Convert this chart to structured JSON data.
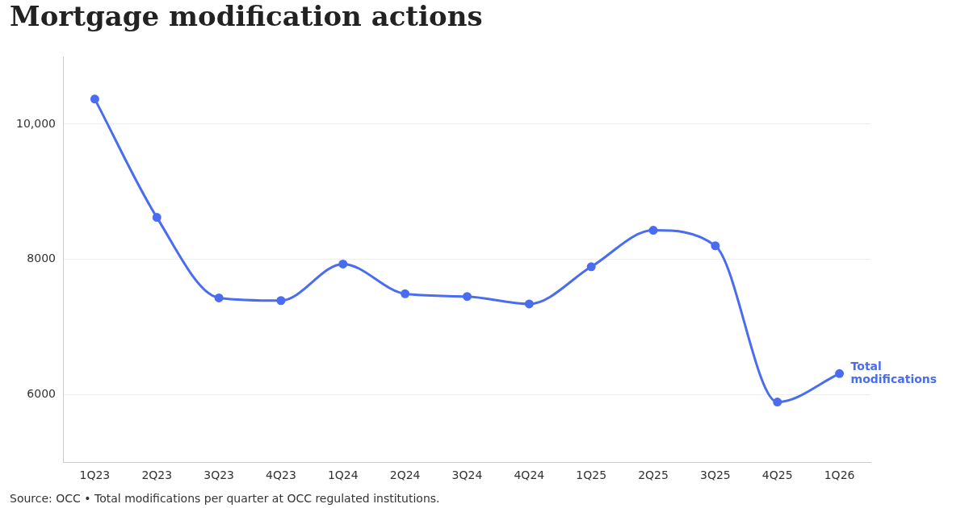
{
  "chart_data": {
    "type": "line",
    "title": "Mortgage modification actions",
    "categories": [
      "1Q23",
      "2Q23",
      "3Q23",
      "4Q23",
      "1Q24",
      "2Q24",
      "3Q24",
      "4Q24",
      "1Q25",
      "2Q25",
      "3Q25",
      "4Q25",
      "1Q26"
    ],
    "series": [
      {
        "name": "Total modifications",
        "color": "#4a6cf0",
        "values": [
          10370,
          8620,
          7430,
          7390,
          7930,
          7490,
          7450,
          7340,
          7890,
          8430,
          8200,
          5890,
          6310
        ]
      }
    ],
    "ylim": [
      5000,
      11000
    ],
    "yticks": [
      {
        "value": 6000,
        "label": "6000"
      },
      {
        "value": 8000,
        "label": "8000"
      },
      {
        "value": 10000,
        "label": "10,000"
      }
    ],
    "grid": "y",
    "legend": false,
    "marker": "circle",
    "line_style": "solid",
    "annotations": [
      "Source: OCC • Total modifications per quarter at OCC regulated institutions."
    ]
  }
}
